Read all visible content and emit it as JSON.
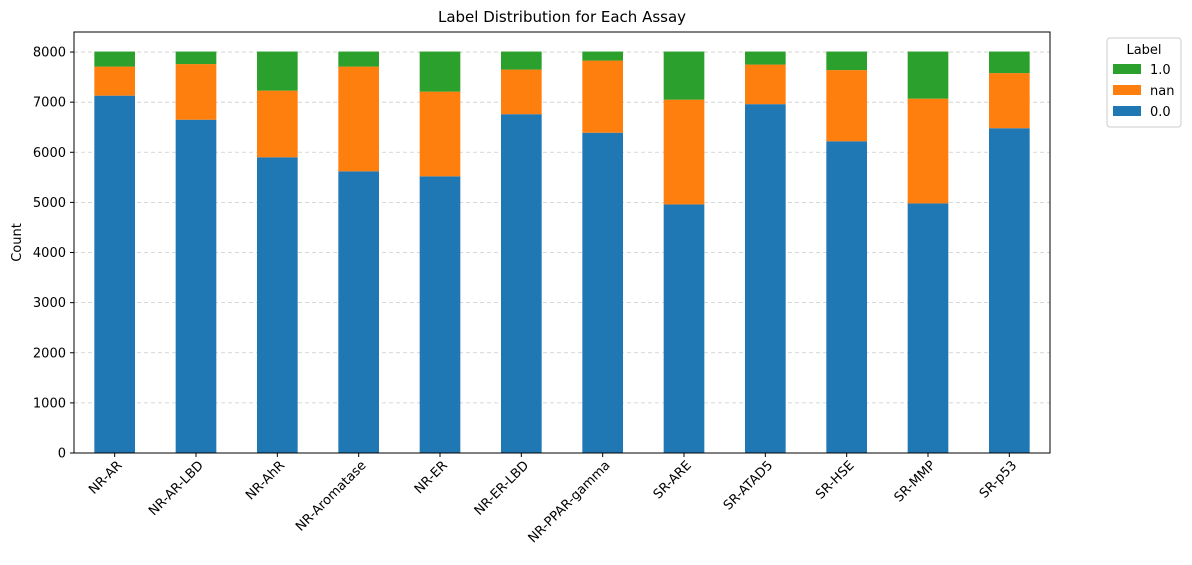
{
  "chart_data": {
    "type": "bar",
    "stacked": true,
    "title": "Label Distribution for Each Assay",
    "xlabel": "",
    "ylabel": "Count",
    "ylim": [
      0,
      8400
    ],
    "yticks": [
      0,
      1000,
      2000,
      3000,
      4000,
      5000,
      6000,
      7000,
      8000
    ],
    "ytick_labels": [
      "0",
      "1000",
      "2000",
      "3000",
      "4000",
      "5000",
      "6000",
      "7000",
      "8000"
    ],
    "grid": "y",
    "legend": {
      "title": "Label",
      "placement": "outside top-right",
      "order": [
        "1.0",
        "nan",
        "0.0"
      ]
    },
    "categories": [
      "NR-AR",
      "NR-AR-LBD",
      "NR-AhR",
      "NR-Aromatase",
      "NR-ER",
      "NR-ER-LBD",
      "NR-PPAR-gamma",
      "SR-ARE",
      "SR-ATAD5",
      "SR-HSE",
      "SR-MMP",
      "SR-p53"
    ],
    "series": [
      {
        "name": "0.0",
        "color": "#1f77b4",
        "values": [
          7130,
          6650,
          5900,
          5620,
          5520,
          6760,
          6390,
          4960,
          6960,
          6220,
          4980,
          6480
        ]
      },
      {
        "name": "nan",
        "color": "#ff7f0e",
        "values": [
          580,
          1110,
          1330,
          2090,
          1690,
          890,
          1440,
          2090,
          790,
          1420,
          2090,
          1100
        ]
      },
      {
        "name": "1.0",
        "color": "#2ca02c",
        "values": [
          300,
          250,
          780,
          300,
          800,
          360,
          180,
          960,
          260,
          370,
          940,
          430
        ]
      }
    ]
  }
}
